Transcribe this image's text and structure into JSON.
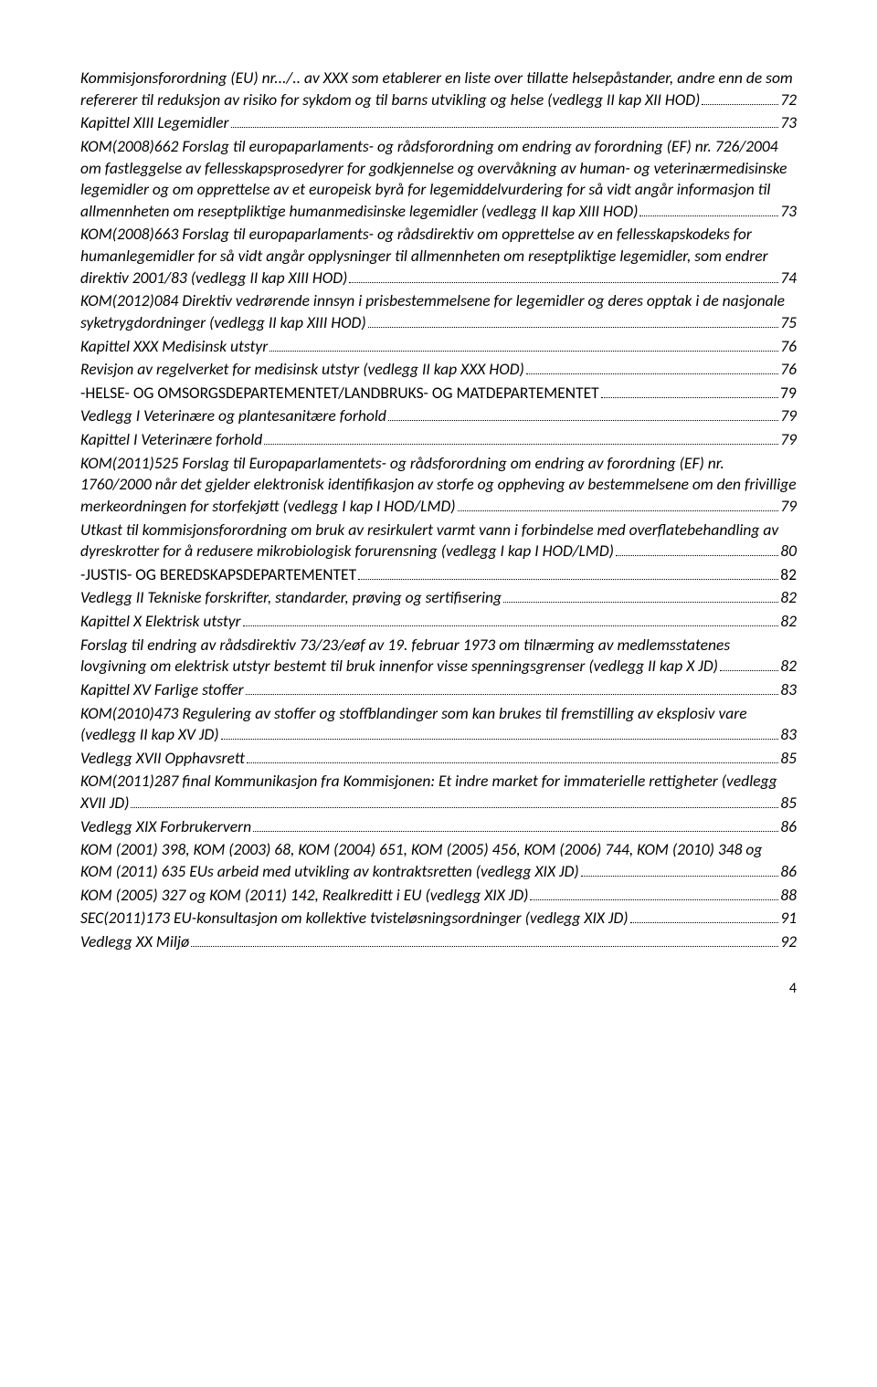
{
  "entries": [
    {
      "type": "italic",
      "pre": "Kommisjonsforordning (EU) nr.../.. av XXX som etablerer en liste over tillatte helsepåstander, andre enn de som refererer til reduksjon av risiko for sykdom og til barns utvikling og helse (vedlegg II kap XII HOD)",
      "page": "72"
    },
    {
      "type": "italic",
      "pre": "Kapittel XIII Legemidler",
      "page": "73"
    },
    {
      "type": "italic",
      "pre": "KOM(2008)662 Forslag til europaparlaments- og rådsforordning om endring av forordning (EF) nr. 726/2004 om fastleggelse av fellesskapsprosedyrer for godkjennelse og overvåkning av human- og veterinærmedisinske legemidler og om opprettelse av et europeisk byrå for legemiddelvurdering for så vidt angår informasjon til allmennheten om reseptpliktige humanmedisinske legemidler (vedlegg II kap XIII HOD)",
      "page": "73"
    },
    {
      "type": "italic",
      "pre": "KOM(2008)663 Forslag til europaparlaments- og rådsdirektiv om opprettelse av en fellesskapskodeks for humanlegemidler for så vidt angår opplysninger til allmennheten om reseptpliktige legemidler, som endrer direktiv 2001/83 (vedlegg II kap XIII HOD)",
      "page": "74"
    },
    {
      "type": "italic",
      "pre": "KOM(2012)084 Direktiv vedrørende innsyn i prisbestemmelsene for legemidler og deres opptak i de nasjonale syketrygdordninger (vedlegg II kap XIII HOD)",
      "page": "75"
    },
    {
      "type": "italic",
      "pre": "Kapittel XXX Medisinsk utstyr",
      "page": "76"
    },
    {
      "type": "italic",
      "pre": "Revisjon av regelverket for medisinsk utstyr (vedlegg II kap XXX HOD)",
      "page": "76"
    },
    {
      "type": "heading",
      "pre": "-HELSE- OG OMSORGSDEPARTEMENTET/LANDBRUKS- OG MATDEPARTEMENTET",
      "page": "79"
    },
    {
      "type": "italic",
      "pre": "Vedlegg I Veterinære og plantesanitære forhold",
      "page": "79"
    },
    {
      "type": "italic",
      "pre": "Kapittel I Veterinære forhold",
      "page": "79"
    },
    {
      "type": "italic",
      "pre": "KOM(2011)525 Forslag til Europaparlamentets- og rådsforordning om endring av forordning (EF) nr. 1760/2000 når det gjelder elektronisk identifikasjon av storfe og oppheving av bestemmelsene om den frivillige merkeordningen for storfekjøtt (vedlegg I kap I HOD/LMD)",
      "page": "79"
    },
    {
      "type": "italic",
      "pre": "Utkast til kommisjonsforordning om bruk av resirkulert varmt vann i forbindelse med overflatebehandling av dyreskrotter for å redusere mikrobiologisk forurensning (vedlegg I kap I HOD/LMD)",
      "page": "80"
    },
    {
      "type": "heading",
      "pre": "-JUSTIS- OG BEREDSKAPSDEPARTEMENTET",
      "page": "82"
    },
    {
      "type": "italic",
      "pre": "Vedlegg II Tekniske forskrifter, standarder, prøving og sertifisering",
      "page": "82"
    },
    {
      "type": "italic",
      "pre": "Kapittel X Elektrisk utstyr",
      "page": "82"
    },
    {
      "type": "italic",
      "pre": "Forslag til endring av rådsdirektiv 73/23/eøf av 19. februar 1973 om tilnærming av medlemsstatenes lovgivning om elektrisk utstyr bestemt til bruk innenfor visse spenningsgrenser (vedlegg II kap X JD)",
      "page": "82"
    },
    {
      "type": "italic",
      "pre": "Kapittel XV Farlige stoffer",
      "page": "83"
    },
    {
      "type": "italic",
      "pre": "KOM(2010)473 Regulering av stoffer og stoffblandinger som kan brukes til fremstilling av eksplosiv vare (vedlegg II kap XV JD)",
      "page": "83"
    },
    {
      "type": "italic",
      "pre": "Vedlegg XVII Opphavsrett",
      "page": "85"
    },
    {
      "type": "italic",
      "pre": "KOM(2011)287 final Kommunikasjon fra Kommisjonen: Et indre market for immaterielle rettigheter (vedlegg XVII JD)",
      "page": "85"
    },
    {
      "type": "italic",
      "pre": "Vedlegg XIX Forbrukervern",
      "page": "86"
    },
    {
      "type": "italic",
      "pre": "KOM (2001) 398, KOM (2003) 68, KOM (2004) 651, KOM (2005) 456, KOM (2006) 744, KOM (2010) 348 og KOM (2011) 635 EUs arbeid med utvikling av kontraktsretten (vedlegg XIX JD)",
      "page": "86"
    },
    {
      "type": "italic",
      "pre": "KOM (2005) 327 og KOM (2011) 142, Realkreditt i EU (vedlegg XIX JD)",
      "page": "88"
    },
    {
      "type": "italic",
      "pre": "SEC(2011)173 EU-konsultasjon om kollektive tvisteløsningsordninger (vedlegg XIX JD)",
      "page": "91"
    },
    {
      "type": "italic",
      "pre": "Vedlegg XX Miljø",
      "page": "92"
    }
  ],
  "footerPage": "4"
}
